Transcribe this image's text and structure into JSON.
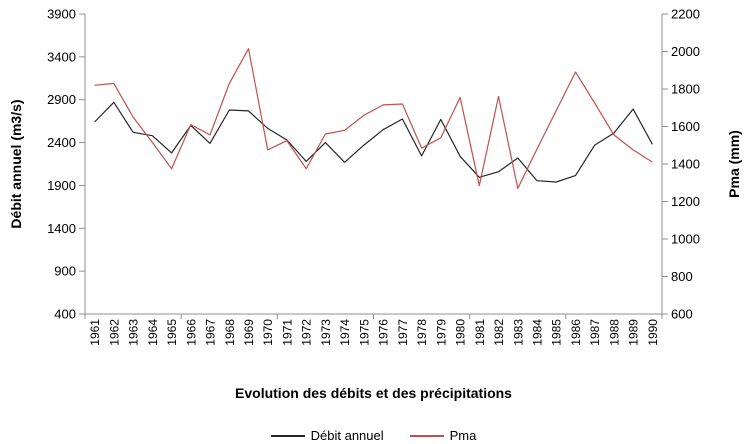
{
  "chart_data": {
    "type": "line",
    "title": "Evolution des débits et des précipitations",
    "x_categories": [
      "1961",
      "1962",
      "1963",
      "1964",
      "1965",
      "1966",
      "1967",
      "1968",
      "1969",
      "1970",
      "1971",
      "1972",
      "1973",
      "1974",
      "1975",
      "1976",
      "1977",
      "1978",
      "1979",
      "1980",
      "1981",
      "1982",
      "1983",
      "1984",
      "1985",
      "1986",
      "1987",
      "1988",
      "1989",
      "1990"
    ],
    "x_tick_interval": 5,
    "left_axis": {
      "label": "Débit annuel (m3/s)",
      "min": 400,
      "max": 3900,
      "ticks": [
        3900,
        3400,
        2900,
        2400,
        1900,
        1400,
        900,
        400
      ]
    },
    "right_axis": {
      "label": "Pma (mm)",
      "min": 600,
      "max": 2200,
      "ticks": [
        2200,
        2000,
        1800,
        1600,
        1400,
        1200,
        1000,
        800,
        600
      ]
    },
    "series": [
      {
        "name": "Débit annuel",
        "axis": "left",
        "color": "#262626",
        "values": [
          2640,
          2870,
          2520,
          2480,
          2280,
          2600,
          2390,
          2780,
          2770,
          2565,
          2430,
          2180,
          2400,
          2170,
          2370,
          2550,
          2675,
          2245,
          2670,
          2240,
          1995,
          2060,
          2220,
          1955,
          1940,
          2015,
          2370,
          2510,
          2790,
          2380
        ]
      },
      {
        "name": "Pma",
        "axis": "right",
        "color": "#c0504d",
        "values": [
          1820,
          1830,
          1650,
          1515,
          1375,
          1610,
          1555,
          1830,
          2015,
          1475,
          1525,
          1375,
          1560,
          1580,
          1660,
          1715,
          1720,
          1485,
          1540,
          1755,
          1285,
          1760,
          1270,
          1480,
          1685,
          1890,
          1725,
          1555,
          1475,
          1410
        ]
      }
    ],
    "legend_position": "bottom",
    "grid": "off"
  },
  "colors": {
    "axis_line": "#909090",
    "tick_text": "#000000",
    "background": "#ffffff"
  }
}
